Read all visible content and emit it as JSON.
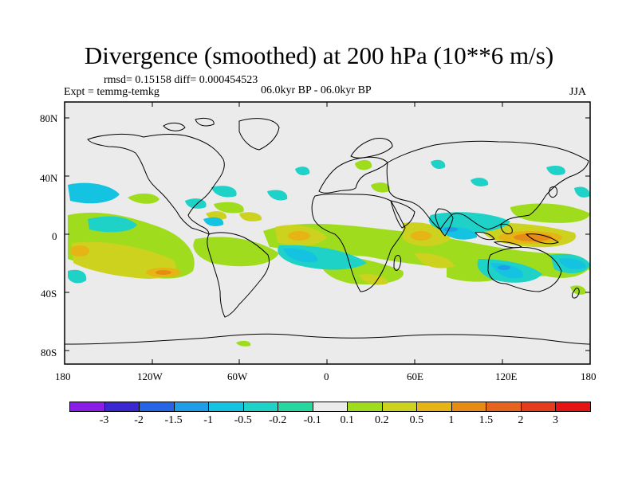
{
  "title": "Divergence (smoothed) at 200 hPa (10**6 m/s)",
  "stats": "rmsd= 0.15158 diff= 0.000454523",
  "experiment": "Expt = temmg-temkg",
  "period": "06.0kyr BP - 06.0kyr BP",
  "season": "JJA",
  "lat_ticks": [
    "80N",
    "40N",
    "0",
    "40S",
    "80S"
  ],
  "lon_ticks": [
    "180",
    "120W",
    "60W",
    "0",
    "60E",
    "120E",
    "180"
  ],
  "legend": {
    "labels": [
      "-3",
      "-2",
      "-1.5",
      "-1",
      "-0.5",
      "-0.2",
      "-0.1",
      "0.1",
      "0.2",
      "0.5",
      "1",
      "1.5",
      "2",
      "3"
    ],
    "colors": [
      "#8a1ee6",
      "#3c28d2",
      "#2864e6",
      "#1e9ee6",
      "#14c3e1",
      "#1ed2c8",
      "#28d7a0",
      "#ebebeb",
      "#a0dc1e",
      "#cdd21e",
      "#e6b414",
      "#e68c14",
      "#e6641e",
      "#e63c1e",
      "#e61414"
    ]
  },
  "colors": {
    "ocean": "#ebebeb",
    "land_outline": "#000000"
  }
}
